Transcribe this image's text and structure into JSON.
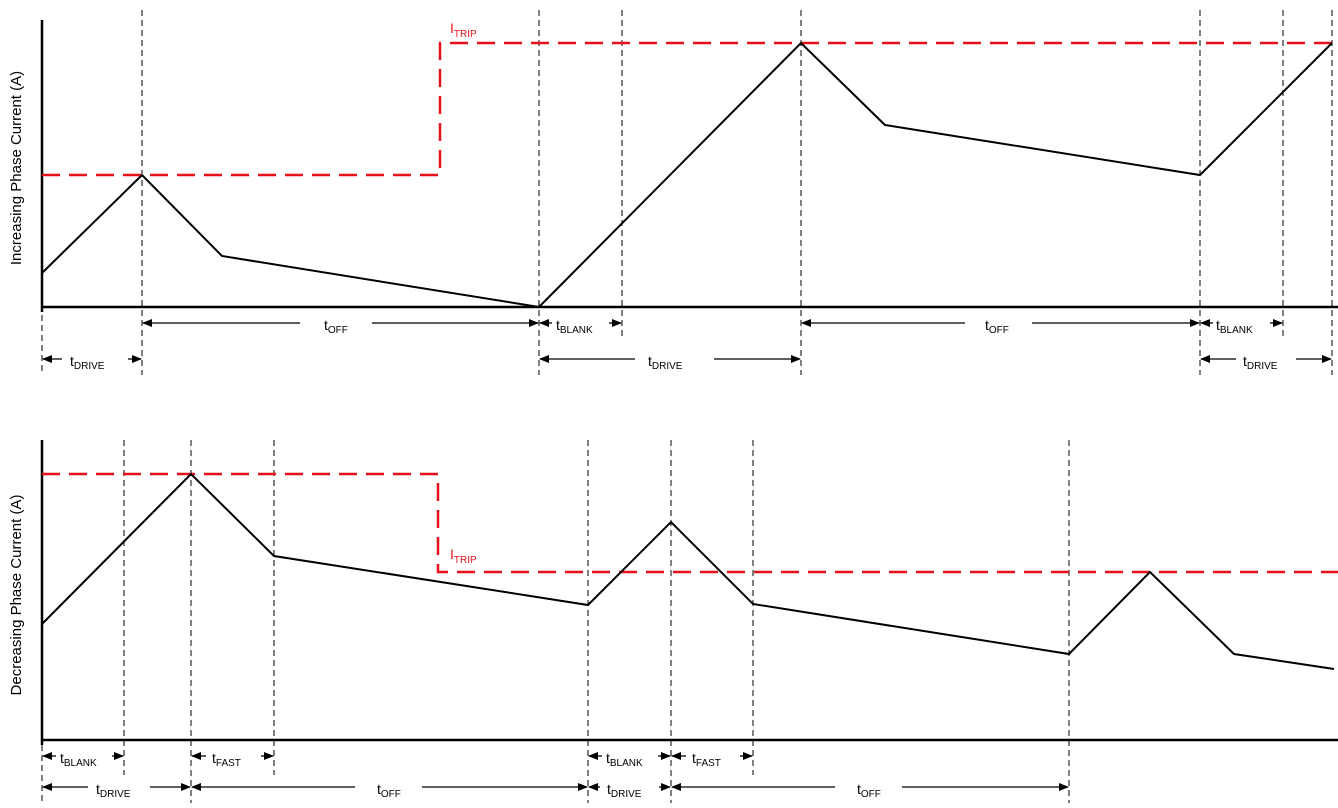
{
  "colors": {
    "trip": "#e8101a",
    "waveform": "#000000",
    "guide": "#000000"
  },
  "panels": [
    {
      "ylabel": "Increasing Phase Current (A)",
      "itrip": {
        "main": "I",
        "sub": "TRIP"
      },
      "labels": [
        {
          "main": "t",
          "sub": "OFF"
        },
        {
          "main": "t",
          "sub": "DRIVE"
        },
        {
          "main": "t",
          "sub": "BLANK"
        },
        {
          "main": "t",
          "sub": "DRIVE"
        },
        {
          "main": "t",
          "sub": "OFF"
        },
        {
          "main": "t",
          "sub": "BLANK"
        },
        {
          "main": "t",
          "sub": "DRIVE"
        }
      ]
    },
    {
      "ylabel": "Decreasing Phase Current (A)",
      "itrip": {
        "main": "I",
        "sub": "TRIP"
      },
      "labels": [
        {
          "main": "t",
          "sub": "BLANK"
        },
        {
          "main": "t",
          "sub": "FAST"
        },
        {
          "main": "t",
          "sub": "BLANK"
        },
        {
          "main": "t",
          "sub": "FAST"
        },
        {
          "main": "t",
          "sub": "DRIVE"
        },
        {
          "main": "t",
          "sub": "OFF"
        },
        {
          "main": "t",
          "sub": "DRIVE"
        },
        {
          "main": "t",
          "sub": "OFF"
        }
      ]
    }
  ]
}
